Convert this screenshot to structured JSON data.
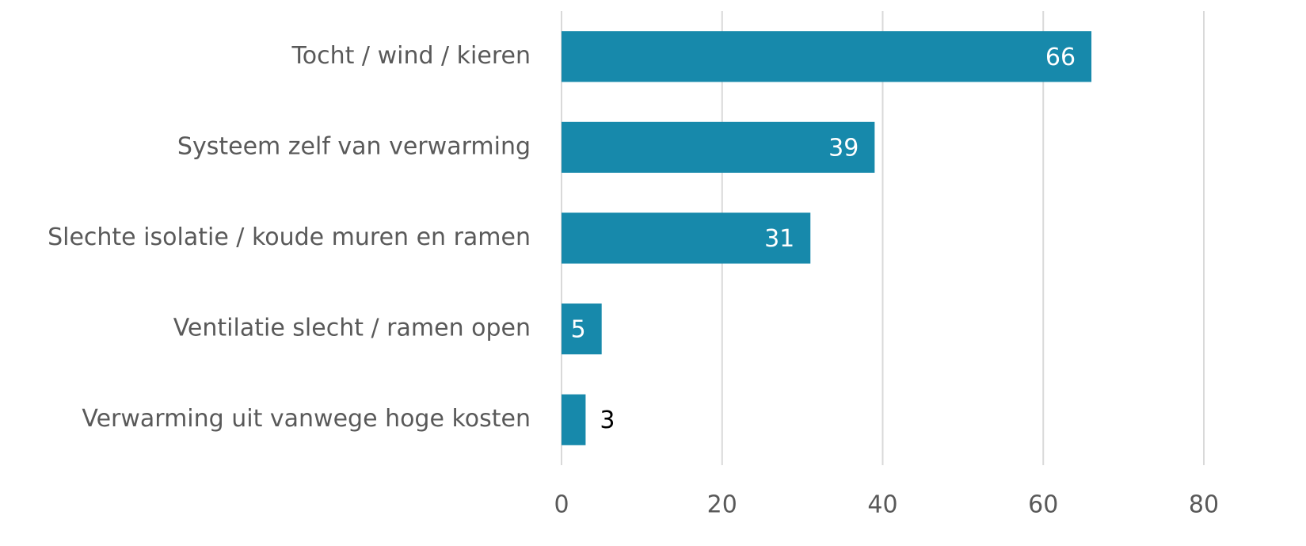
{
  "chart_data": {
    "type": "barh",
    "categories": [
      "Tocht / wind / kieren",
      "Systeem zelf van verwarming",
      "Slechte isolatie / koude muren en ramen",
      "Ventilatie slecht / ramen open",
      "Verwarming uit vanwege hoge kosten"
    ],
    "values": [
      66,
      39,
      31,
      5,
      3
    ],
    "color": "#1789ab",
    "xlim": [
      0,
      80
    ],
    "xticks": [
      0,
      20,
      40,
      60,
      80
    ],
    "grid": true
  }
}
